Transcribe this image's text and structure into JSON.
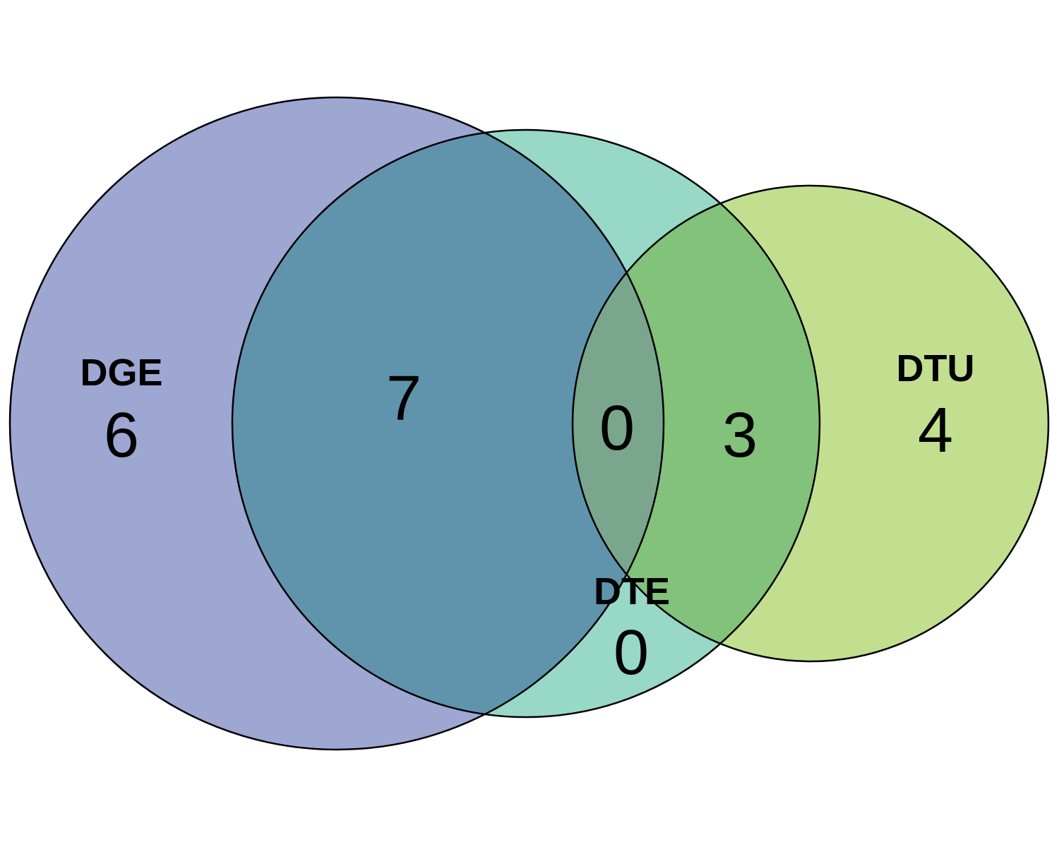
{
  "sets": [
    {
      "key": "dge",
      "label": "DGE",
      "color": "#9ea6d2"
    },
    {
      "key": "dte",
      "label": "DTE",
      "color": "#98d8c7"
    },
    {
      "key": "dtu",
      "label": "DTU",
      "color": "#c2df8f"
    }
  ],
  "intersection_colors": {
    "dge_dte": "#6094ac",
    "dte_dtu": "#82c27a",
    "dge_dte_dtu": "#7aa68e"
  },
  "regions": {
    "dge_only": "6",
    "dge_dte": "7",
    "dge_dte_dtu": "0",
    "dte_dtu": "3",
    "dtu_only": "4",
    "dte_only": "0"
  }
}
